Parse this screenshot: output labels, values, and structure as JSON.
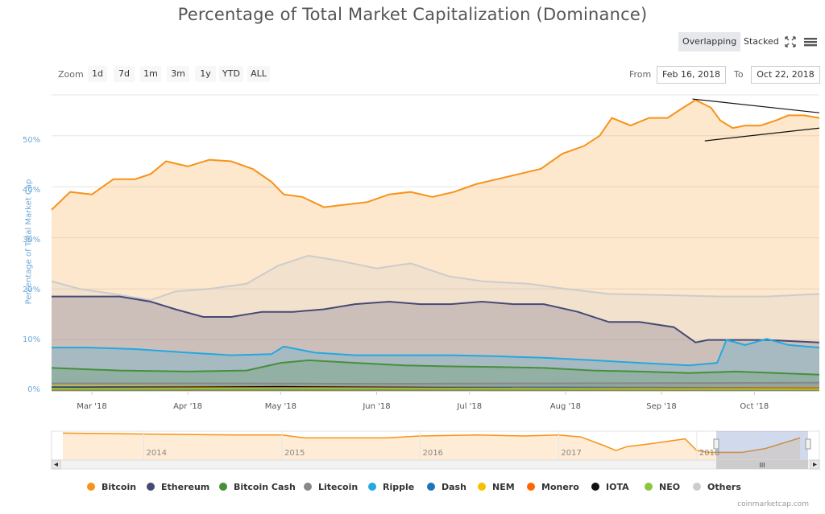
{
  "title": "Percentage of Total Market Capitalization (Dominance)",
  "view_toggle": {
    "overlapping": "Overlapping",
    "stacked": "Stacked"
  },
  "toolbar": {
    "fullscreen_icon": "fullscreen-icon",
    "menu_icon": "hamburger-menu-icon"
  },
  "zoom": {
    "label": "Zoom",
    "buttons": [
      "1d",
      "7d",
      "1m",
      "3m",
      "1y",
      "YTD",
      "ALL"
    ]
  },
  "range": {
    "from_label": "From",
    "from_value": "Feb 16, 2018",
    "to_label": "To",
    "to_value": "Oct 22, 2018"
  },
  "credit": "coinmarketcap.com",
  "navigator": {
    "years": [
      "2014",
      "2015",
      "2016",
      "2017",
      "2018"
    ],
    "scroll_grip": "III"
  },
  "chart_data": {
    "type": "area",
    "ylabel": "Percentage of Total Market Cap",
    "ylim": [
      0,
      58
    ],
    "yticks": [
      "0%",
      "10%",
      "20%",
      "30%",
      "40%",
      "50%"
    ],
    "x_ticks": [
      "Mar '18",
      "Apr '18",
      "May '18",
      "Jun '18",
      "Jul '18",
      "Aug '18",
      "Sep '18",
      "Oct '18"
    ],
    "x_range": [
      "2018-02-16",
      "2018-10-22"
    ],
    "grid": true,
    "legend_position": "bottom",
    "series": [
      {
        "name": "Bitcoin",
        "color": "#f7931a",
        "points": [
          [
            "2018-02-16",
            35.5
          ],
          [
            "2018-02-22",
            39
          ],
          [
            "2018-03-01",
            38.5
          ],
          [
            "2018-03-08",
            41.5
          ],
          [
            "2018-03-15",
            41.5
          ],
          [
            "2018-03-20",
            42.5
          ],
          [
            "2018-03-25",
            45
          ],
          [
            "2018-04-01",
            44
          ],
          [
            "2018-04-08",
            45.3
          ],
          [
            "2018-04-15",
            45
          ],
          [
            "2018-04-22",
            43.5
          ],
          [
            "2018-04-28",
            41
          ],
          [
            "2018-05-02",
            38.5
          ],
          [
            "2018-05-08",
            38
          ],
          [
            "2018-05-15",
            36
          ],
          [
            "2018-05-22",
            36.5
          ],
          [
            "2018-05-29",
            37
          ],
          [
            "2018-06-05",
            38.5
          ],
          [
            "2018-06-12",
            39
          ],
          [
            "2018-06-19",
            38
          ],
          [
            "2018-06-26",
            39
          ],
          [
            "2018-07-03",
            40.5
          ],
          [
            "2018-07-10",
            41.5
          ],
          [
            "2018-07-17",
            42.5
          ],
          [
            "2018-07-24",
            43.5
          ],
          [
            "2018-07-31",
            46.5
          ],
          [
            "2018-08-07",
            48
          ],
          [
            "2018-08-12",
            50
          ],
          [
            "2018-08-16",
            53.5
          ],
          [
            "2018-08-22",
            52
          ],
          [
            "2018-08-28",
            53.5
          ],
          [
            "2018-09-03",
            53.5
          ],
          [
            "2018-09-08",
            55.5
          ],
          [
            "2018-09-12",
            57
          ],
          [
            "2018-09-17",
            55.5
          ],
          [
            "2018-09-20",
            53
          ],
          [
            "2018-09-24",
            51.5
          ],
          [
            "2018-09-28",
            52
          ],
          [
            "2018-10-03",
            52
          ],
          [
            "2018-10-08",
            53
          ],
          [
            "2018-10-12",
            54
          ],
          [
            "2018-10-17",
            54
          ],
          [
            "2018-10-22",
            53.5
          ]
        ]
      },
      {
        "name": "Others",
        "color": "#cccccc",
        "points": [
          [
            "2018-02-16",
            21.5
          ],
          [
            "2018-02-25",
            20
          ],
          [
            "2018-03-08",
            19
          ],
          [
            "2018-03-20",
            17.8
          ],
          [
            "2018-03-28",
            19.5
          ],
          [
            "2018-04-08",
            20
          ],
          [
            "2018-04-20",
            21
          ],
          [
            "2018-04-30",
            24.5
          ],
          [
            "2018-05-10",
            26.5
          ],
          [
            "2018-05-20",
            25.5
          ],
          [
            "2018-06-01",
            24
          ],
          [
            "2018-06-12",
            25
          ],
          [
            "2018-06-24",
            22.5
          ],
          [
            "2018-07-05",
            21.5
          ],
          [
            "2018-07-20",
            21
          ],
          [
            "2018-08-01",
            20
          ],
          [
            "2018-08-15",
            19
          ],
          [
            "2018-09-01",
            18.8
          ],
          [
            "2018-09-20",
            18.5
          ],
          [
            "2018-10-05",
            18.5
          ],
          [
            "2018-10-22",
            19
          ]
        ]
      },
      {
        "name": "Ethereum",
        "color": "#454a75",
        "points": [
          [
            "2018-02-16",
            18.5
          ],
          [
            "2018-02-28",
            18.5
          ],
          [
            "2018-03-10",
            18.5
          ],
          [
            "2018-03-20",
            17.5
          ],
          [
            "2018-03-28",
            16
          ],
          [
            "2018-04-06",
            14.5
          ],
          [
            "2018-04-15",
            14.5
          ],
          [
            "2018-04-25",
            15.5
          ],
          [
            "2018-05-05",
            15.5
          ],
          [
            "2018-05-15",
            16
          ],
          [
            "2018-05-25",
            17
          ],
          [
            "2018-06-05",
            17.5
          ],
          [
            "2018-06-15",
            17
          ],
          [
            "2018-06-25",
            17
          ],
          [
            "2018-07-05",
            17.5
          ],
          [
            "2018-07-15",
            17
          ],
          [
            "2018-07-25",
            17
          ],
          [
            "2018-08-05",
            15.5
          ],
          [
            "2018-08-15",
            13.5
          ],
          [
            "2018-08-25",
            13.5
          ],
          [
            "2018-09-05",
            12.5
          ],
          [
            "2018-09-12",
            9.5
          ],
          [
            "2018-09-16",
            10
          ],
          [
            "2018-09-23",
            10
          ],
          [
            "2018-10-05",
            10
          ],
          [
            "2018-10-22",
            9.5
          ]
        ]
      },
      {
        "name": "Ripple",
        "color": "#23a8e0",
        "points": [
          [
            "2018-02-16",
            8.5
          ],
          [
            "2018-02-28",
            8.5
          ],
          [
            "2018-03-15",
            8.2
          ],
          [
            "2018-04-01",
            7.5
          ],
          [
            "2018-04-15",
            7
          ],
          [
            "2018-04-28",
            7.2
          ],
          [
            "2018-05-02",
            8.7
          ],
          [
            "2018-05-12",
            7.5
          ],
          [
            "2018-05-25",
            7
          ],
          [
            "2018-06-10",
            7
          ],
          [
            "2018-06-25",
            7
          ],
          [
            "2018-07-10",
            6.8
          ],
          [
            "2018-07-25",
            6.5
          ],
          [
            "2018-08-10",
            6
          ],
          [
            "2018-08-25",
            5.5
          ],
          [
            "2018-09-10",
            5
          ],
          [
            "2018-09-19",
            5.5
          ],
          [
            "2018-09-22",
            10
          ],
          [
            "2018-09-28",
            9
          ],
          [
            "2018-10-05",
            10.2
          ],
          [
            "2018-10-12",
            9
          ],
          [
            "2018-10-22",
            8.5
          ]
        ]
      },
      {
        "name": "Bitcoin Cash",
        "color": "#478f3b",
        "points": [
          [
            "2018-02-16",
            4.5
          ],
          [
            "2018-03-10",
            4
          ],
          [
            "2018-04-01",
            3.8
          ],
          [
            "2018-04-20",
            4
          ],
          [
            "2018-05-01",
            5.5
          ],
          [
            "2018-05-10",
            6
          ],
          [
            "2018-05-25",
            5.5
          ],
          [
            "2018-06-10",
            5
          ],
          [
            "2018-06-25",
            4.8
          ],
          [
            "2018-07-10",
            4.7
          ],
          [
            "2018-07-25",
            4.5
          ],
          [
            "2018-08-10",
            4
          ],
          [
            "2018-08-25",
            3.8
          ],
          [
            "2018-09-10",
            3.5
          ],
          [
            "2018-09-25",
            3.8
          ],
          [
            "2018-10-22",
            3.2
          ]
        ]
      },
      {
        "name": "Litecoin",
        "color": "#888888",
        "points": [
          [
            "2018-02-16",
            1.5
          ],
          [
            "2018-04-01",
            1.5
          ],
          [
            "2018-06-01",
            1.4
          ],
          [
            "2018-08-01",
            1.5
          ],
          [
            "2018-10-22",
            1.6
          ]
        ]
      },
      {
        "name": "NEM",
        "color": "#f5c000",
        "points": [
          [
            "2018-02-16",
            1.0
          ],
          [
            "2018-05-01",
            0.7
          ],
          [
            "2018-08-01",
            0.5
          ],
          [
            "2018-10-22",
            0.4
          ]
        ]
      },
      {
        "name": "Dash",
        "color": "#1c75bc",
        "points": [
          [
            "2018-02-16",
            0.8
          ],
          [
            "2018-05-01",
            0.7
          ],
          [
            "2018-08-01",
            0.7
          ],
          [
            "2018-10-22",
            0.6
          ]
        ]
      },
      {
        "name": "IOTA",
        "color": "#111111",
        "points": [
          [
            "2018-02-16",
            0.6
          ],
          [
            "2018-05-01",
            0.8
          ],
          [
            "2018-08-01",
            0.5
          ],
          [
            "2018-10-22",
            0.5
          ]
        ]
      },
      {
        "name": "Monero",
        "color": "#ff6600",
        "points": [
          [
            "2018-02-16",
            0.5
          ],
          [
            "2018-05-01",
            0.6
          ],
          [
            "2018-08-01",
            0.5
          ],
          [
            "2018-10-22",
            0.6
          ]
        ]
      },
      {
        "name": "NEO",
        "color": "#8cc63f",
        "points": [
          [
            "2018-02-16",
            0.4
          ],
          [
            "2018-05-01",
            0.5
          ],
          [
            "2018-08-01",
            0.4
          ],
          [
            "2018-10-22",
            0.3
          ]
        ]
      }
    ],
    "legend": [
      "Bitcoin",
      "Ethereum",
      "Bitcoin Cash",
      "Litecoin",
      "Ripple",
      "Dash",
      "NEM",
      "Monero",
      "IOTA",
      "NEO",
      "Others"
    ],
    "annotation": {
      "type": "trendlines",
      "upper": [
        [
          "2018-09-11",
          57.2
        ],
        [
          "2018-10-22",
          54.5
        ]
      ],
      "lower": [
        [
          "2018-09-15",
          49
        ],
        [
          "2018-10-22",
          51.5
        ]
      ]
    },
    "navigator_series": [
      [
        "2013-06",
        58
      ],
      [
        "2014-01",
        57
      ],
      [
        "2014-09",
        56
      ],
      [
        "2015-01",
        56
      ],
      [
        "2015-03",
        53
      ],
      [
        "2015-10",
        53
      ],
      [
        "2016-01",
        55
      ],
      [
        "2016-06",
        56
      ],
      [
        "2016-10",
        55
      ],
      [
        "2017-01",
        56
      ],
      [
        "2017-03",
        54
      ],
      [
        "2017-05",
        45
      ],
      [
        "2017-06",
        40
      ],
      [
        "2017-07",
        44
      ],
      [
        "2017-09",
        47
      ],
      [
        "2017-12",
        52
      ],
      [
        "2018-01",
        40
      ],
      [
        "2018-02",
        38
      ],
      [
        "2018-05",
        38
      ],
      [
        "2018-07",
        42
      ],
      [
        "2018-10",
        53
      ]
    ]
  }
}
